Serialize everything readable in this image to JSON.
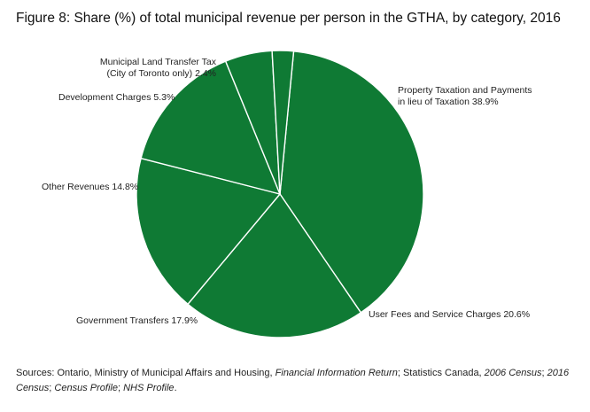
{
  "chart_data": {
    "type": "pie",
    "title": "Figure 8: Share (%) of total municipal revenue per person in the GTHA, by category, 2016",
    "unit": "%",
    "color": "#0f7a34",
    "slice_border_color": "#ffffff",
    "slices": [
      {
        "key": "property",
        "label_lines": [
          "Property Taxation and Payments",
          "in lieu of Taxation 38.9%"
        ],
        "value": 38.9
      },
      {
        "key": "user_fees",
        "label_lines": [
          "User Fees and Service Charges 20.6%"
        ],
        "value": 20.6
      },
      {
        "key": "gov_transfers",
        "label_lines": [
          "Government Transfers 17.9%"
        ],
        "value": 17.9
      },
      {
        "key": "other",
        "label_lines": [
          "Other Revenues 14.8%"
        ],
        "value": 14.8
      },
      {
        "key": "dev_charges",
        "label_lines": [
          "Development Charges 5.3%"
        ],
        "value": 5.3
      },
      {
        "key": "land_transfer",
        "label_lines": [
          "Municipal Land Transfer Tax",
          "(City of Toronto only) 2.4%"
        ],
        "value": 2.4
      }
    ]
  },
  "source": {
    "segments": [
      {
        "text": "Sources: Ontario, Ministry of Municipal Affairs and Housing, ",
        "italic": false
      },
      {
        "text": "Financial Information Return",
        "italic": true
      },
      {
        "text": "; Statistics Canada, ",
        "italic": false
      },
      {
        "text": "2006 Census",
        "italic": true
      },
      {
        "text": "; ",
        "italic": false
      },
      {
        "text": "2016 Census",
        "italic": true
      },
      {
        "text": "; ",
        "italic": false
      },
      {
        "text": "Census Profile",
        "italic": true
      },
      {
        "text": "; ",
        "italic": false
      },
      {
        "text": "NHS Profile",
        "italic": true
      },
      {
        "text": ".",
        "italic": false
      }
    ]
  }
}
